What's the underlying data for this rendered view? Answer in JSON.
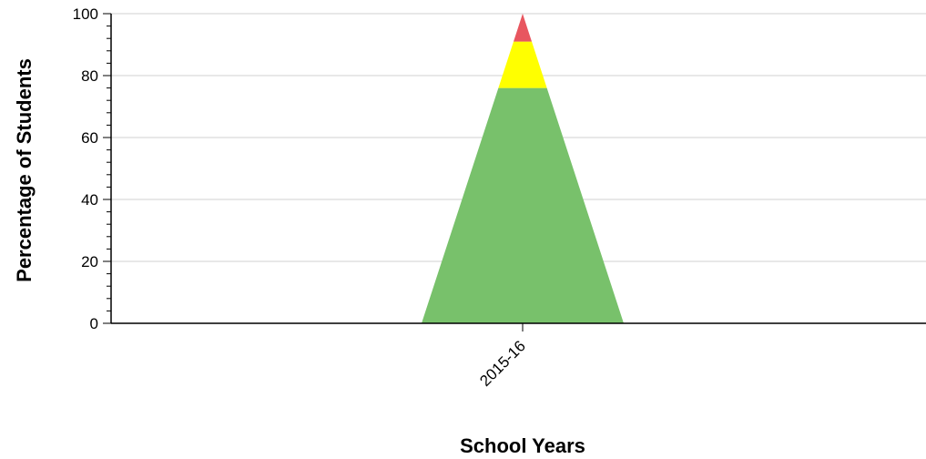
{
  "chart_data": {
    "type": "area",
    "categories": [
      "2015-16"
    ],
    "series": [
      {
        "values": [
          76
        ],
        "color": "#78c16b"
      },
      {
        "values": [
          15
        ],
        "color": "#ffff00"
      },
      {
        "values": [
          9
        ],
        "color": "#e8565f"
      }
    ],
    "xlabel": "School Years",
    "ylabel": "Percentage of Students",
    "ylim": [
      0,
      100
    ],
    "yticks": [
      0,
      20,
      40,
      60,
      80,
      100
    ],
    "grid": true,
    "legend": "none"
  }
}
